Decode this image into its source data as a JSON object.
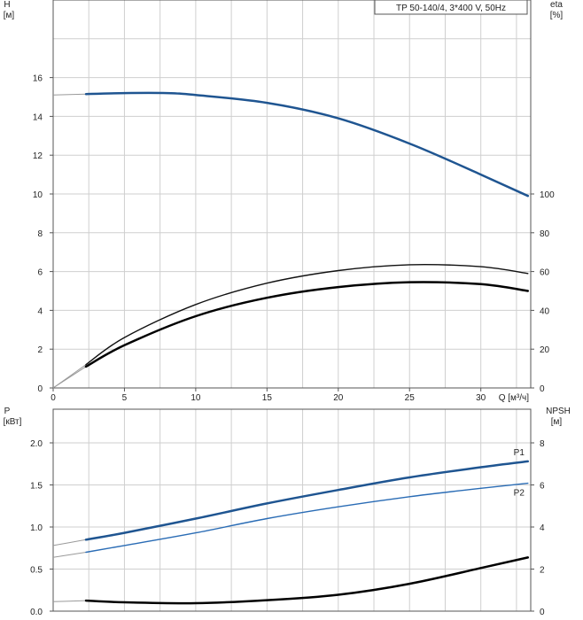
{
  "chart_data": [
    {
      "type": "line",
      "legend": "TP 50-140/4, 3*400 V, 50Hz",
      "x_axis": {
        "label": "Q [м³/ч]",
        "range": [
          0,
          33.5
        ],
        "ticks": [
          "0",
          "5",
          "10",
          "15",
          "20",
          "25",
          "30"
        ]
      },
      "y_left": {
        "label_top": "H",
        "label_unit": "[м]",
        "range": [
          0,
          20
        ],
        "ticks": [
          "0",
          "2",
          "4",
          "6",
          "8",
          "10",
          "12",
          "14",
          "16"
        ]
      },
      "y_right": {
        "label_top": "eta",
        "label_unit": "[%]",
        "range": [
          0,
          200
        ],
        "ticks": [
          "0",
          "20",
          "40",
          "60",
          "80",
          "100"
        ]
      },
      "grid": true,
      "series": [
        {
          "id": "H",
          "axis": "left",
          "color": "#1f5591",
          "x": [
            0,
            2.3,
            5,
            8,
            10,
            15,
            20,
            25,
            30,
            33.3
          ],
          "y": [
            15.1,
            15.15,
            15.2,
            15.2,
            15.1,
            14.7,
            13.9,
            12.6,
            11.0,
            9.9
          ]
        },
        {
          "id": "eta-upper",
          "axis": "right",
          "color": "#111111",
          "x": [
            0,
            2.3,
            5,
            10,
            15,
            20,
            25,
            30,
            33.3
          ],
          "y": [
            0,
            12,
            26,
            43,
            54,
            60.5,
            63.5,
            62.5,
            59
          ]
        },
        {
          "id": "eta-lower",
          "axis": "right",
          "color": "#000000",
          "x": [
            0,
            2.3,
            5,
            10,
            15,
            20,
            25,
            30,
            33.3
          ],
          "y": [
            0,
            11,
            22,
            37,
            46.5,
            52,
            54.5,
            53.5,
            50
          ]
        }
      ]
    },
    {
      "type": "line",
      "x_axis": {
        "range": [
          0,
          33.5
        ]
      },
      "y_left": {
        "label_top": "P",
        "label_unit": "[кВт]",
        "range": [
          0,
          2.4
        ],
        "ticks": [
          "0.0",
          "0.5",
          "1.0",
          "1.5",
          "2.0"
        ]
      },
      "y_right": {
        "label_top": "NPSH",
        "label_unit": "[м]",
        "range": [
          0,
          9.6
        ],
        "ticks": [
          "0",
          "2",
          "4",
          "6",
          "8"
        ]
      },
      "grid": true,
      "series": [
        {
          "name": "P1",
          "axis": "left",
          "color": "#1f5591",
          "x": [
            0,
            2.3,
            5,
            10,
            15,
            20,
            25,
            30,
            33.3
          ],
          "y": [
            0.78,
            0.85,
            0.93,
            1.1,
            1.28,
            1.44,
            1.59,
            1.71,
            1.78
          ]
        },
        {
          "name": "P2",
          "axis": "left",
          "color": "#2a6cb5",
          "x": [
            0,
            2.3,
            5,
            10,
            15,
            20,
            25,
            30,
            33.3
          ],
          "y": [
            0.64,
            0.7,
            0.78,
            0.93,
            1.1,
            1.24,
            1.36,
            1.46,
            1.52
          ]
        },
        {
          "id": "NPSH",
          "axis": "right",
          "color": "#000000",
          "x": [
            0,
            2.3,
            5,
            10,
            15,
            20,
            25,
            30,
            33.3
          ],
          "y": [
            0.45,
            0.5,
            0.42,
            0.38,
            0.52,
            0.78,
            1.3,
            2.05,
            2.55
          ]
        }
      ]
    }
  ]
}
